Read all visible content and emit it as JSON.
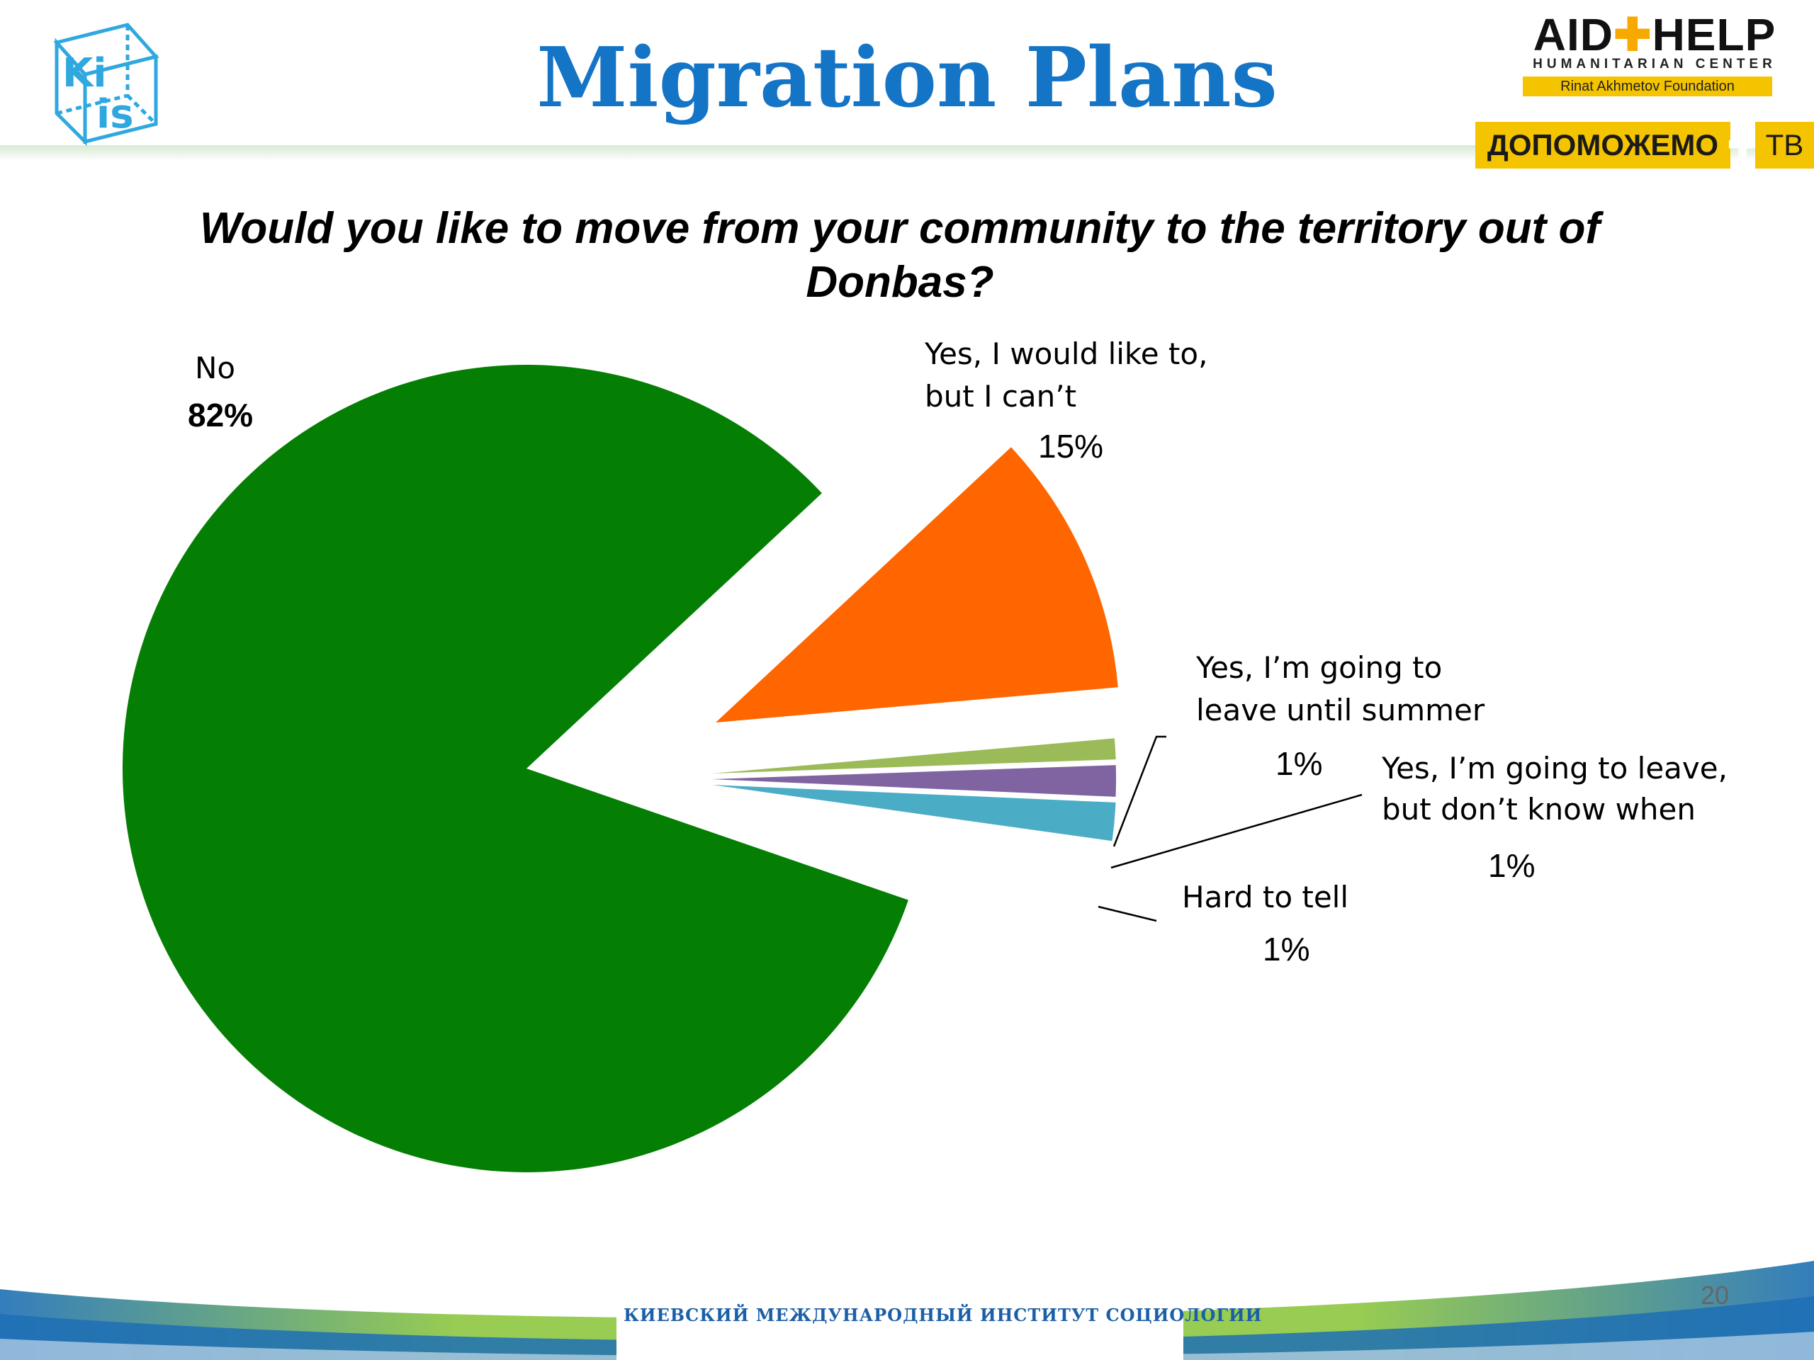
{
  "header": {
    "title": "Migration Plans",
    "kiis_logo_text": "KIIS",
    "aidhelp": {
      "word_a": "AID",
      "word_b": "HELP",
      "sub": "HUMANITARIAN CENTER",
      "foundation": "Rinat Akhmetov Foundation"
    },
    "dopomozhemo": {
      "word_a": "ДОПОМОЖЕМО",
      "word_b": "ТВ"
    }
  },
  "chart_data": {
    "type": "pie",
    "title": "Would you like to move from your community to the territory out of Donbas?",
    "exploded": true,
    "slices": [
      {
        "label": "No",
        "value": 82,
        "pct_label": "82%",
        "color": "#047f04"
      },
      {
        "label": "Yes, I would like to, but I can’t",
        "value": 15,
        "pct_label": "15%",
        "color": "#ff6600"
      },
      {
        "label": "Yes, I’m going to leave until summer",
        "value": 1,
        "pct_label": "1%",
        "color": "#9bbb59"
      },
      {
        "label": "Yes, I’m going to leave, but don’t know when",
        "value": 1,
        "pct_label": "1%",
        "color": "#8064a2"
      },
      {
        "label": "Hard to tell",
        "value": 1,
        "pct_label": "1%",
        "color": "#4bacc6"
      }
    ]
  },
  "labels": {
    "no_name": "No",
    "no_pct": "82%",
    "would_line1": "Yes, I would like to,",
    "would_line2": "but I can’t",
    "would_pct": "15%",
    "summer_line1": "Yes, I’m going to",
    "summer_line2": "leave until summer",
    "summer_pct": "1%",
    "dontknow_line1": "Yes, I’m going to leave,",
    "dontknow_line2": "but don’t know when",
    "dontknow_pct": "1%",
    "hard_line1": "Hard to tell",
    "hard_pct": "1%"
  },
  "footer": {
    "institute": "КИЕВСКИЙ МЕЖДУНАРОДНЫЙ ИНСТИТУТ СОЦИОЛОГИИ",
    "page_number": "20"
  }
}
